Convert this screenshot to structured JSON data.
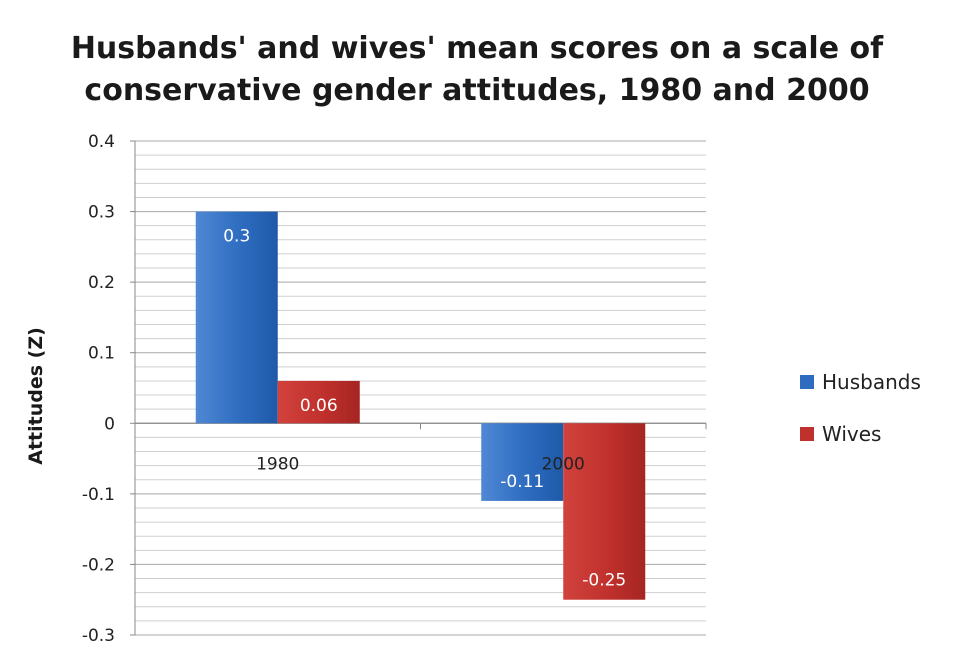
{
  "chart_data": {
    "type": "bar",
    "title_lines": [
      "Husbands' and wives' mean scores on a scale of",
      "conservative gender attitudes, 1980 and 2000"
    ],
    "xlabel": "",
    "ylabel": "Attitudes (Z)",
    "categories": [
      "1980",
      "2000"
    ],
    "series": [
      {
        "name": "Husbands",
        "values": [
          0.3,
          -0.11
        ],
        "labels": [
          "0.3",
          "-0.11"
        ],
        "color": "#2e6cc0"
      },
      {
        "name": "Wives",
        "values": [
          0.06,
          -0.25
        ],
        "labels": [
          "0.06",
          "-0.25"
        ],
        "color": "#c0302c"
      }
    ],
    "ylim": [
      -0.3,
      0.4
    ],
    "yticks": [
      "0.4",
      "0.3",
      "0.2",
      "0.1",
      "0",
      "-0.1",
      "-0.2",
      "-0.3"
    ],
    "grid": true,
    "legend_position": "right"
  }
}
